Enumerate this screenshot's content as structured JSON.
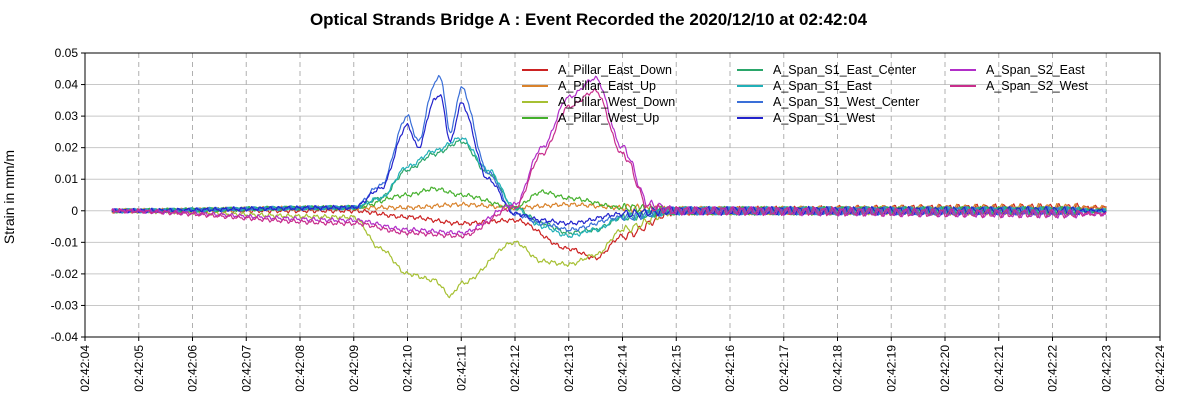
{
  "chart_data": {
    "type": "line",
    "title": "Optical Strands Bridge A : Event Recorded the 2020/12/10 at 02:42:04",
    "xlabel": "",
    "ylabel": "Strain in mm/m",
    "ylim": [
      -0.04,
      0.05
    ],
    "yticks": [
      "0.05",
      "0.04",
      "0.03",
      "0.02",
      "0.01",
      "0",
      "-0.01",
      "-0.02",
      "-0.03",
      "-0.04"
    ],
    "yticks_values": [
      0.05,
      0.04,
      0.03,
      0.02,
      0.01,
      0,
      -0.01,
      -0.02,
      -0.03,
      -0.04
    ],
    "xlim_seconds": [
      4,
      24
    ],
    "xticks": [
      "02:42:04",
      "02:42:05",
      "02:42:06",
      "02:42:07",
      "02:42:08",
      "02:42:09",
      "02:42:10",
      "02:42:11",
      "02:42:12",
      "02:42:13",
      "02:42:14",
      "02:42:15",
      "02:42:16",
      "02:42:17",
      "02:42:18",
      "02:42:19",
      "02:42:20",
      "02:42:21",
      "02:42:22",
      "02:42:23",
      "02:42:24"
    ],
    "grid": "dashed",
    "legend_position": "top-right",
    "series": [
      {
        "name": "A_Pillar_East_Down",
        "color": "#cc2222",
        "x": [
          "02:42:04.5",
          "02:42:09",
          "02:42:10",
          "02:42:11",
          "02:42:12",
          "02:42:13",
          "02:42:13.5",
          "02:42:14",
          "02:42:15",
          "02:42:23"
        ],
        "y": [
          0,
          0,
          -0.002,
          -0.004,
          -0.003,
          -0.012,
          -0.015,
          -0.008,
          0,
          0.001
        ]
      },
      {
        "name": "A_Pillar_East_Up",
        "color": "#d9822b",
        "x": [
          "02:42:04.5",
          "02:42:09",
          "02:42:10",
          "02:42:11",
          "02:42:12",
          "02:42:13",
          "02:42:14",
          "02:42:15",
          "02:42:23"
        ],
        "y": [
          0,
          0.001,
          0.001,
          0.002,
          0.001,
          0.002,
          0.001,
          0,
          0.001
        ]
      },
      {
        "name": "A_Pillar_West_Down",
        "color": "#a6c033",
        "x": [
          "02:42:04.5",
          "02:42:09",
          "02:42:09.5",
          "02:42:10",
          "02:42:10.5",
          "02:42:10.8",
          "02:42:11",
          "02:42:12",
          "02:42:12.5",
          "02:42:13",
          "02:42:13.5",
          "02:42:14",
          "02:42:15",
          "02:42:23"
        ],
        "y": [
          0,
          -0.002,
          -0.012,
          -0.02,
          -0.022,
          -0.027,
          -0.023,
          -0.01,
          -0.016,
          -0.017,
          -0.014,
          -0.006,
          0,
          0
        ]
      },
      {
        "name": "A_Pillar_West_Up",
        "color": "#44b02c",
        "x": [
          "02:42:04.5",
          "02:42:09",
          "02:42:10",
          "02:42:10.5",
          "02:42:11",
          "02:42:12",
          "02:42:12.5",
          "02:42:13",
          "02:42:14",
          "02:42:15",
          "02:42:23"
        ],
        "y": [
          0,
          0.001,
          0.005,
          0.007,
          0.005,
          0.001,
          0.006,
          0.004,
          0.001,
          0,
          0
        ]
      },
      {
        "name": "A_Span_S1_East_Center",
        "color": "#2aa66a",
        "x": [
          "02:42:04.5",
          "02:42:09",
          "02:42:09.5",
          "02:42:10",
          "02:42:10.5",
          "02:42:11",
          "02:42:11.5",
          "02:42:12",
          "02:42:12.5",
          "02:42:13",
          "02:42:13.5",
          "02:42:14",
          "02:42:15",
          "02:42:23"
        ],
        "y": [
          0,
          0.001,
          0.004,
          0.013,
          0.018,
          0.022,
          0.012,
          0.001,
          -0.004,
          -0.007,
          -0.006,
          -0.002,
          0,
          0
        ]
      },
      {
        "name": "A_Span_S1_East",
        "color": "#21b0b8",
        "x": [
          "02:42:04.5",
          "02:42:09",
          "02:42:09.5",
          "02:42:10",
          "02:42:10.5",
          "02:42:11",
          "02:42:11.5",
          "02:42:12",
          "02:42:12.5",
          "02:42:13",
          "02:42:13.5",
          "02:42:14",
          "02:42:15",
          "02:42:23"
        ],
        "y": [
          0,
          0.001,
          0.004,
          0.014,
          0.019,
          0.023,
          0.013,
          0.001,
          -0.005,
          -0.008,
          -0.006,
          -0.002,
          0,
          0
        ]
      },
      {
        "name": "A_Span_S1_West_Center",
        "color": "#3a6fd8",
        "x": [
          "02:42:04.5",
          "02:42:09",
          "02:42:09.5",
          "02:42:10",
          "02:42:10.2",
          "02:42:10.5",
          "02:42:10.6",
          "02:42:10.8",
          "02:42:11",
          "02:42:11.5",
          "02:42:12",
          "02:42:12.5",
          "02:42:13",
          "02:42:14",
          "02:42:15",
          "02:42:23"
        ],
        "y": [
          0,
          0.001,
          0.008,
          0.03,
          0.022,
          0.04,
          0.043,
          0.025,
          0.039,
          0.012,
          -0.001,
          -0.004,
          -0.006,
          -0.002,
          0,
          0
        ]
      },
      {
        "name": "A_Span_S1_West",
        "color": "#2222cc",
        "x": [
          "02:42:04.5",
          "02:42:09",
          "02:42:09.5",
          "02:42:10",
          "02:42:10.2",
          "02:42:10.5",
          "02:42:10.6",
          "02:42:10.8",
          "02:42:11",
          "02:42:11.5",
          "02:42:12",
          "02:42:12.5",
          "02:42:13",
          "02:42:14",
          "02:42:15",
          "02:42:23"
        ],
        "y": [
          0,
          0.001,
          0.007,
          0.027,
          0.02,
          0.035,
          0.037,
          0.022,
          0.034,
          0.01,
          -0.001,
          -0.003,
          -0.004,
          -0.001,
          0,
          0
        ]
      },
      {
        "name": "A_Span_S2_East",
        "color": "#b12ec8",
        "x": [
          "02:42:04.5",
          "02:42:09",
          "02:42:10",
          "02:42:11",
          "02:42:12",
          "02:42:12.5",
          "02:42:13",
          "02:42:13.5",
          "02:42:14",
          "02:42:14.5",
          "02:42:15",
          "02:42:23"
        ],
        "y": [
          0,
          -0.003,
          -0.006,
          -0.007,
          0.002,
          0.02,
          0.036,
          0.042,
          0.02,
          0.002,
          0,
          -0.001
        ]
      },
      {
        "name": "A_Span_S2_West",
        "color": "#c82e8c",
        "x": [
          "02:42:04.5",
          "02:42:09",
          "02:42:10",
          "02:42:11",
          "02:42:12",
          "02:42:12.5",
          "02:42:13",
          "02:42:13.5",
          "02:42:14",
          "02:42:14.5",
          "02:42:15",
          "02:42:23"
        ],
        "y": [
          0,
          -0.004,
          -0.007,
          -0.008,
          0.001,
          0.018,
          0.033,
          0.038,
          0.018,
          0.001,
          0,
          -0.001
        ]
      }
    ]
  }
}
